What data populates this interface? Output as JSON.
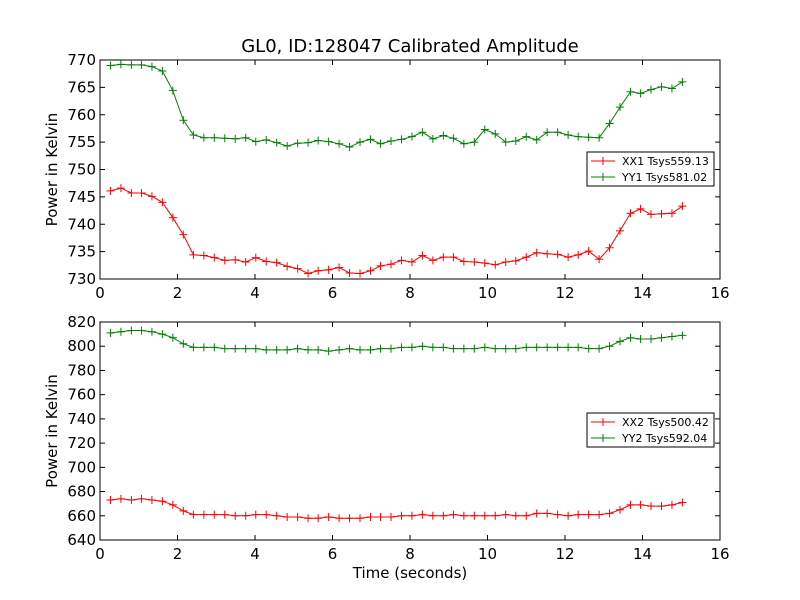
{
  "title": "GL0, ID:128047 Calibrated Amplitude",
  "xlabel": "Time (seconds)",
  "colors": {
    "XX": "#ff0000",
    "YY": "#008000"
  },
  "chart_data": [
    {
      "type": "line",
      "title": "GL0, ID:128047 Calibrated Amplitude",
      "xlabel": "",
      "ylabel": "Power in Kelvin",
      "xlim": [
        0,
        16
      ],
      "ylim": [
        730,
        770
      ],
      "xticks": [
        0,
        2,
        4,
        6,
        8,
        10,
        12,
        14,
        16
      ],
      "yticks": [
        730,
        735,
        740,
        745,
        750,
        755,
        760,
        765,
        770
      ],
      "legend_position": "center-right",
      "x": [
        0.27,
        0.54,
        0.81,
        1.07,
        1.34,
        1.61,
        1.88,
        2.15,
        2.41,
        2.68,
        2.95,
        3.22,
        3.49,
        3.76,
        4.02,
        4.29,
        4.56,
        4.83,
        5.1,
        5.37,
        5.63,
        5.9,
        6.17,
        6.44,
        6.71,
        6.98,
        7.24,
        7.51,
        7.78,
        8.05,
        8.32,
        8.59,
        8.86,
        9.12,
        9.39,
        9.66,
        9.93,
        10.2,
        10.47,
        10.73,
        11.0,
        11.27,
        11.54,
        11.81,
        12.08,
        12.34,
        12.61,
        12.88,
        13.15,
        13.42,
        13.69,
        13.95,
        14.22,
        14.49,
        14.76,
        15.03
      ],
      "series": [
        {
          "name": "XX1 Tsys559.13",
          "color": "#ff0000",
          "values": [
            746.1,
            746.6,
            745.7,
            745.7,
            745.1,
            744.0,
            741.2,
            738.1,
            734.4,
            734.3,
            733.9,
            733.4,
            733.5,
            733.1,
            733.9,
            733.2,
            733.0,
            732.3,
            731.9,
            731.0,
            731.5,
            731.7,
            732.1,
            731.1,
            731.0,
            731.5,
            732.4,
            732.7,
            733.4,
            733.1,
            734.3,
            733.4,
            734.0,
            734.0,
            733.2,
            733.1,
            732.9,
            732.6,
            733.1,
            733.3,
            734.0,
            734.8,
            734.6,
            734.5,
            734.0,
            734.4,
            735.1,
            733.6,
            735.7,
            738.8,
            742.0,
            742.8,
            741.8,
            741.9,
            742.0,
            743.3
          ]
        },
        {
          "name": "YY1 Tsys581.02",
          "color": "#008000",
          "values": [
            769.0,
            769.2,
            769.1,
            769.1,
            768.8,
            768.0,
            764.4,
            759.0,
            756.3,
            755.8,
            755.8,
            755.7,
            755.6,
            755.8,
            755.1,
            755.4,
            754.9,
            754.3,
            754.8,
            754.9,
            755.3,
            755.1,
            754.7,
            754.1,
            755.0,
            755.5,
            754.7,
            755.2,
            755.5,
            756.0,
            756.8,
            755.6,
            756.2,
            755.7,
            754.7,
            755.0,
            757.3,
            756.5,
            755.0,
            755.2,
            756.0,
            755.4,
            756.8,
            756.8,
            756.3,
            756.0,
            755.9,
            755.8,
            758.4,
            761.4,
            764.2,
            763.9,
            764.6,
            765.1,
            764.8,
            766.0
          ]
        }
      ]
    },
    {
      "type": "line",
      "title": "",
      "xlabel": "Time (seconds)",
      "ylabel": "Power in Kelvin",
      "xlim": [
        0,
        16
      ],
      "ylim": [
        640,
        820
      ],
      "xticks": [
        0,
        2,
        4,
        6,
        8,
        10,
        12,
        14,
        16
      ],
      "yticks": [
        640,
        660,
        680,
        700,
        720,
        740,
        760,
        780,
        800,
        820
      ],
      "legend_position": "center-right",
      "x": [
        0.27,
        0.54,
        0.81,
        1.07,
        1.34,
        1.61,
        1.88,
        2.15,
        2.41,
        2.68,
        2.95,
        3.22,
        3.49,
        3.76,
        4.02,
        4.29,
        4.56,
        4.83,
        5.1,
        5.37,
        5.63,
        5.9,
        6.17,
        6.44,
        6.71,
        6.98,
        7.24,
        7.51,
        7.78,
        8.05,
        8.32,
        8.59,
        8.86,
        9.12,
        9.39,
        9.66,
        9.93,
        10.2,
        10.47,
        10.73,
        11.0,
        11.27,
        11.54,
        11.81,
        12.08,
        12.34,
        12.61,
        12.88,
        13.15,
        13.42,
        13.69,
        13.95,
        14.22,
        14.49,
        14.76,
        15.03
      ],
      "series": [
        {
          "name": "XX2 Tsys500.42",
          "color": "#ff0000",
          "values": [
            673,
            674,
            673,
            674,
            673,
            672,
            669,
            664,
            661,
            661,
            661,
            661,
            660,
            660,
            661,
            661,
            660,
            659,
            659,
            658,
            658,
            659,
            658,
            658,
            658,
            659,
            659,
            659,
            660,
            660,
            661,
            660,
            660,
            661,
            660,
            660,
            660,
            660,
            661,
            660,
            660,
            662,
            662,
            661,
            660,
            661,
            661,
            661,
            662,
            665,
            669,
            669,
            668,
            668,
            669,
            671
          ]
        },
        {
          "name": "YY2 Tsys592.04",
          "color": "#008000",
          "values": [
            811,
            812,
            813,
            813,
            812,
            810,
            807,
            802,
            799,
            799,
            799,
            798,
            798,
            798,
            798,
            797,
            797,
            797,
            798,
            797,
            797,
            796,
            797,
            798,
            797,
            797,
            798,
            798,
            799,
            799,
            800,
            799,
            799,
            798,
            798,
            798,
            799,
            798,
            798,
            798,
            799,
            799,
            799,
            799,
            799,
            799,
            798,
            798,
            800,
            804,
            807,
            806,
            806,
            807,
            808,
            809
          ]
        }
      ]
    }
  ]
}
